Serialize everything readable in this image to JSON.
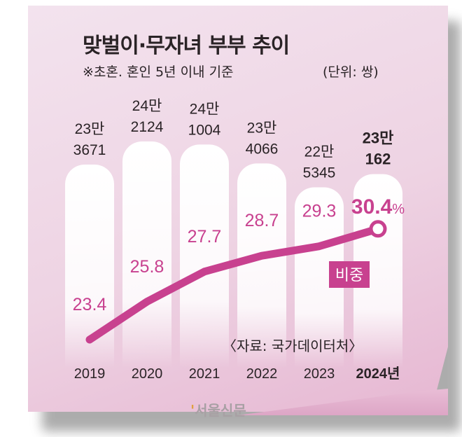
{
  "title": "맞벌이·무자녀 부부 추이",
  "note": "※초혼. 혼인 5년 이내 기준",
  "unit": "(단위: 쌍)",
  "source": "〈자료: 국가데이터처〉",
  "logo": "서울신문",
  "colors": {
    "line": "#c8418f",
    "bar": "#ffffff",
    "text": "#2a2326"
  },
  "chart_data": {
    "type": "bar+line",
    "categories": [
      "2019",
      "2020",
      "2021",
      "2022",
      "2023",
      "2024년"
    ],
    "series": [
      {
        "values": [
          233671,
          242124,
          241004,
          234066,
          225345,
          230162
        ],
        "labels": [
          [
            "23만",
            "3671"
          ],
          [
            "24만",
            "2124"
          ],
          [
            "24만",
            "1004"
          ],
          [
            "23만",
            "4066"
          ],
          [
            "22만",
            "5345"
          ],
          [
            "23만",
            "162"
          ]
        ]
      },
      {
        "name": "비중",
        "values": [
          23.4,
          25.8,
          27.7,
          28.7,
          29.3,
          30.4
        ],
        "labels": [
          "23.4",
          "25.8",
          "27.7",
          "28.7",
          "29.3",
          "30.4"
        ],
        "unit": "%"
      }
    ]
  }
}
